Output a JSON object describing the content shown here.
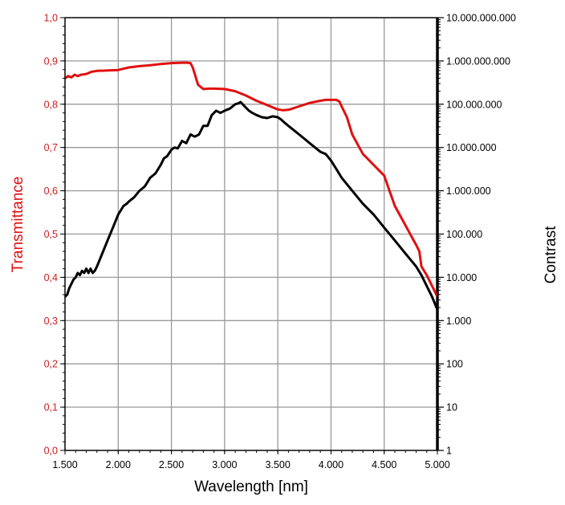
{
  "chart_data": {
    "type": "line",
    "xlabel": "Wavelength [nm]",
    "ylabel_left": "Transmittance",
    "ylabel_right": "Contrast",
    "xlim": [
      1500,
      5000
    ],
    "ylim_left": [
      0,
      1
    ],
    "ylim_right_log10": [
      0,
      10
    ],
    "grid": true,
    "x_ticks": [
      {
        "value": 1500,
        "label": "1.500"
      },
      {
        "value": 2000,
        "label": "2.000"
      },
      {
        "value": 2500,
        "label": "2.500"
      },
      {
        "value": 3000,
        "label": "3.000"
      },
      {
        "value": 3500,
        "label": "3.500"
      },
      {
        "value": 4000,
        "label": "4.000"
      },
      {
        "value": 4500,
        "label": "4.500"
      },
      {
        "value": 5000,
        "label": "5.000"
      }
    ],
    "y_left_ticks": [
      {
        "value": 0.0,
        "label": "0,0"
      },
      {
        "value": 0.1,
        "label": "0,1"
      },
      {
        "value": 0.2,
        "label": "0,2"
      },
      {
        "value": 0.3,
        "label": "0,3"
      },
      {
        "value": 0.4,
        "label": "0,4"
      },
      {
        "value": 0.5,
        "label": "0,5"
      },
      {
        "value": 0.6,
        "label": "0,6"
      },
      {
        "value": 0.7,
        "label": "0,7"
      },
      {
        "value": 0.8,
        "label": "0,8"
      },
      {
        "value": 0.9,
        "label": "0,9"
      },
      {
        "value": 1.0,
        "label": "1,0"
      }
    ],
    "y_right_ticks": [
      {
        "value": 1,
        "label": "1"
      },
      {
        "value": 10,
        "label": "10"
      },
      {
        "value": 100,
        "label": "100"
      },
      {
        "value": 1000,
        "label": "1.000"
      },
      {
        "value": 10000,
        "label": "10.000"
      },
      {
        "value": 100000,
        "label": "100.000"
      },
      {
        "value": 1000000,
        "label": "1.000.000"
      },
      {
        "value": 10000000,
        "label": "10.000.000"
      },
      {
        "value": 100000000,
        "label": "100.000.000"
      },
      {
        "value": 1000000000,
        "label": "1.000.000.000"
      },
      {
        "value": 10000000000,
        "label": "10.000.000.000"
      }
    ],
    "series": [
      {
        "axis": "left",
        "color": "#e01010",
        "x": [
          1500,
          1530,
          1560,
          1590,
          1620,
          1650,
          1700,
          1750,
          1800,
          1900,
          2000,
          2050,
          2100,
          2200,
          2300,
          2400,
          2500,
          2600,
          2650,
          2680,
          2700,
          2720,
          2750,
          2800,
          2850,
          2900,
          3000,
          3100,
          3200,
          3300,
          3400,
          3500,
          3550,
          3600,
          3700,
          3800,
          3900,
          3950,
          4000,
          4050,
          4080,
          4100,
          4150,
          4200,
          4300,
          4400,
          4500,
          4550,
          4600,
          4700,
          4800,
          4830,
          4850,
          4900,
          4950,
          5000
        ],
        "values": [
          0.86,
          0.865,
          0.862,
          0.868,
          0.865,
          0.868,
          0.87,
          0.875,
          0.877,
          0.878,
          0.879,
          0.882,
          0.885,
          0.888,
          0.89,
          0.893,
          0.895,
          0.896,
          0.896,
          0.895,
          0.885,
          0.87,
          0.845,
          0.835,
          0.836,
          0.836,
          0.835,
          0.83,
          0.82,
          0.808,
          0.798,
          0.788,
          0.786,
          0.787,
          0.795,
          0.803,
          0.808,
          0.81,
          0.81,
          0.81,
          0.806,
          0.795,
          0.77,
          0.73,
          0.685,
          0.66,
          0.635,
          0.6,
          0.565,
          0.52,
          0.475,
          0.46,
          0.425,
          0.405,
          0.38,
          0.355
        ]
      },
      {
        "axis": "right",
        "color": "#000000",
        "x": [
          1500,
          1520,
          1540,
          1560,
          1580,
          1600,
          1620,
          1640,
          1660,
          1680,
          1700,
          1720,
          1740,
          1760,
          1780,
          1800,
          1850,
          1900,
          1950,
          2000,
          2050,
          2080,
          2100,
          2150,
          2200,
          2250,
          2300,
          2350,
          2400,
          2430,
          2460,
          2500,
          2530,
          2560,
          2600,
          2640,
          2680,
          2720,
          2760,
          2800,
          2840,
          2880,
          2920,
          2960,
          3000,
          3050,
          3100,
          3130,
          3150,
          3170,
          3200,
          3230,
          3260,
          3300,
          3350,
          3400,
          3450,
          3500,
          3530,
          3560,
          3600,
          3650,
          3700,
          3750,
          3800,
          3850,
          3900,
          3950,
          4000,
          4050,
          4100,
          4200,
          4300,
          4400,
          4500,
          4600,
          4700,
          4800,
          4850,
          4900,
          4950,
          5000
        ],
        "values_log10": [
          3.55,
          3.6,
          3.75,
          3.85,
          3.95,
          4.0,
          4.1,
          4.05,
          4.15,
          4.1,
          4.2,
          4.1,
          4.2,
          4.1,
          4.15,
          4.25,
          4.55,
          4.85,
          5.15,
          5.45,
          5.65,
          5.7,
          5.75,
          5.85,
          6.0,
          6.1,
          6.3,
          6.4,
          6.6,
          6.75,
          6.8,
          6.95,
          7.0,
          6.98,
          7.15,
          7.1,
          7.3,
          7.25,
          7.3,
          7.5,
          7.5,
          7.75,
          7.85,
          7.8,
          7.85,
          7.9,
          8.0,
          8.02,
          8.05,
          8.0,
          7.92,
          7.85,
          7.8,
          7.75,
          7.7,
          7.68,
          7.72,
          7.7,
          7.65,
          7.58,
          7.5,
          7.4,
          7.3,
          7.2,
          7.1,
          7.0,
          6.9,
          6.85,
          6.7,
          6.5,
          6.3,
          6.0,
          5.7,
          5.45,
          5.15,
          4.85,
          4.55,
          4.25,
          4.05,
          3.8,
          3.55,
          3.25
        ]
      }
    ]
  }
}
